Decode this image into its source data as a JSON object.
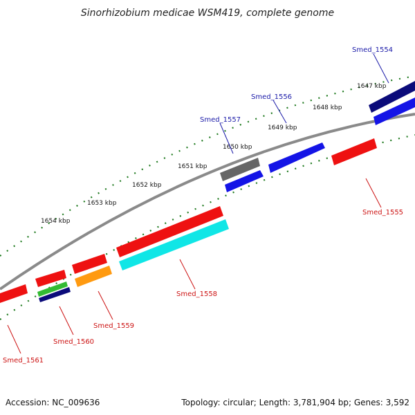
{
  "title": "Sinorhizobium medicae WSM419, complete genome",
  "footer": {
    "accession": "Accession: NC_009636",
    "topology": "Topology: circular; Length: 3,781,904 bp; Genes: 3,592"
  },
  "colors": {
    "backbone": "#8a8a8a",
    "tick": "#1f7a1f",
    "red": "#ee1111",
    "blue": "#1414e6",
    "navy": "#0b0b7a",
    "gray": "#666666",
    "cyan": "#10e6e6",
    "orange": "#ff9a10",
    "green": "#33bb33"
  },
  "scale_labels": [
    "1647 kbp",
    "1648 kbp",
    "1649 kbp",
    "1650 kbp",
    "1651 kbp",
    "1652 kbp",
    "1653 kbp",
    "1654 kbp"
  ],
  "gene_labels_top": [
    "Smed_1554",
    "Smed_1556",
    "Smed_1557"
  ],
  "gene_labels_bottom": [
    "Smed_1555",
    "Smed_1558",
    "Smed_1559",
    "Smed_1560",
    "Smed_1561"
  ]
}
